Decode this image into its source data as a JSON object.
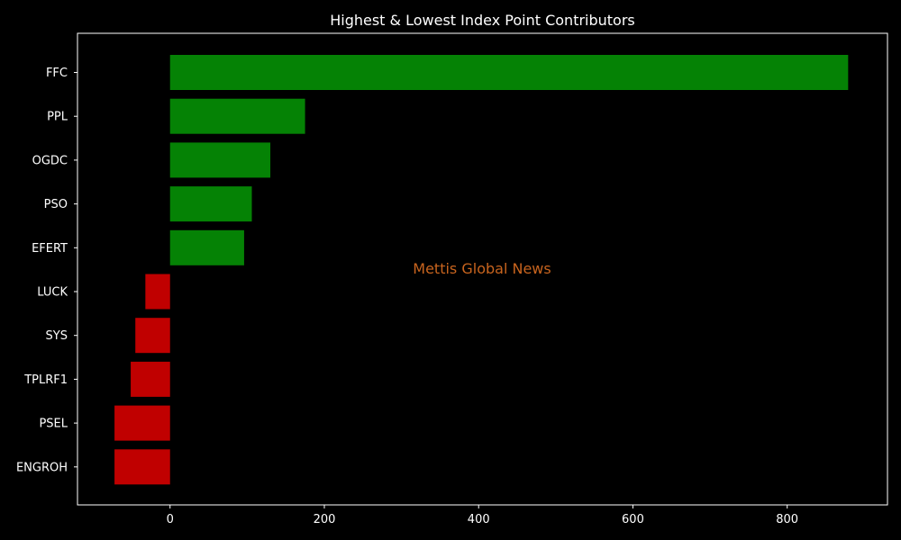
{
  "chart_data": {
    "type": "bar",
    "orientation": "horizontal",
    "title": "Highest & Lowest Index Point Contributors",
    "xlabel": "",
    "ylabel": "",
    "watermark": "Mettis Global News",
    "categories": [
      "FFC",
      "PPL",
      "OGDC",
      "PSO",
      "EFERT",
      "LUCK",
      "SYS",
      "TPLRF1",
      "PSEL",
      "ENGROH"
    ],
    "values": [
      879,
      175,
      130,
      106,
      96,
      -32,
      -45,
      -51,
      -72,
      -72
    ],
    "xlim": [
      -120,
      930
    ],
    "xticks": [
      0,
      200,
      400,
      600,
      800
    ],
    "grid": false,
    "legend": "none",
    "colors": {
      "background": "#000000",
      "text": "#ffffff",
      "axes": "#ffffff",
      "positive": "#058205",
      "negative": "#c00000",
      "watermark": "#c8641e"
    }
  }
}
